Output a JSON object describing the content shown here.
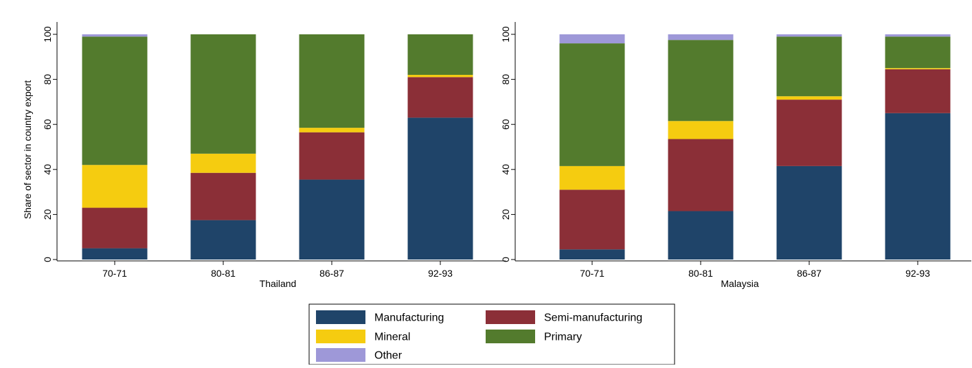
{
  "chart_data": [
    {
      "type": "bar",
      "stacked": true,
      "xlabel": "Thailand",
      "ylabel": "Share of sector in country export",
      "ylim": [
        0,
        100
      ],
      "yticks": [
        0,
        20,
        40,
        60,
        80,
        100
      ],
      "grid": false,
      "categories": [
        "70-71",
        "80-81",
        "86-87",
        "92-93"
      ],
      "series": [
        {
          "name": "Manufacturing",
          "color": "#1f4469",
          "values": [
            5,
            17.5,
            35.5,
            63
          ]
        },
        {
          "name": "Semi-manufacturing",
          "color": "#8b2f37",
          "values": [
            18,
            21,
            21,
            18
          ]
        },
        {
          "name": "Mineral",
          "color": "#f5cc10",
          "values": [
            19,
            8.5,
            2,
            1
          ]
        },
        {
          "name": "Primary",
          "color": "#537b2d",
          "values": [
            57,
            53,
            41.5,
            18
          ]
        },
        {
          "name": "Other",
          "color": "#9e98d8",
          "values": [
            1,
            0,
            0,
            0
          ]
        }
      ]
    },
    {
      "type": "bar",
      "stacked": true,
      "xlabel": "Malaysia",
      "ylabel": "",
      "ylim": [
        0,
        100
      ],
      "yticks": [
        0,
        20,
        40,
        60,
        80,
        100
      ],
      "grid": false,
      "categories": [
        "70-71",
        "80-81",
        "86-87",
        "92-93"
      ],
      "series": [
        {
          "name": "Manufacturing",
          "color": "#1f4469",
          "values": [
            4.5,
            21.5,
            41.5,
            65
          ]
        },
        {
          "name": "Semi-manufacturing",
          "color": "#8b2f37",
          "values": [
            26.5,
            32,
            29.5,
            19.5
          ]
        },
        {
          "name": "Mineral",
          "color": "#f5cc10",
          "values": [
            10.5,
            8,
            1.5,
            0.5
          ]
        },
        {
          "name": "Primary",
          "color": "#537b2d",
          "values": [
            54.5,
            36,
            26.5,
            14
          ]
        },
        {
          "name": "Other",
          "color": "#9e98d8",
          "values": [
            4,
            2.5,
            1,
            1
          ]
        }
      ]
    }
  ],
  "legend": {
    "position": "bottom",
    "items": [
      {
        "label": "Manufacturing",
        "color": "#1f4469"
      },
      {
        "label": "Semi-manufacturing",
        "color": "#8b2f37"
      },
      {
        "label": "Mineral",
        "color": "#f5cc10"
      },
      {
        "label": "Primary",
        "color": "#537b2d"
      },
      {
        "label": "Other",
        "color": "#9e98d8"
      }
    ]
  }
}
